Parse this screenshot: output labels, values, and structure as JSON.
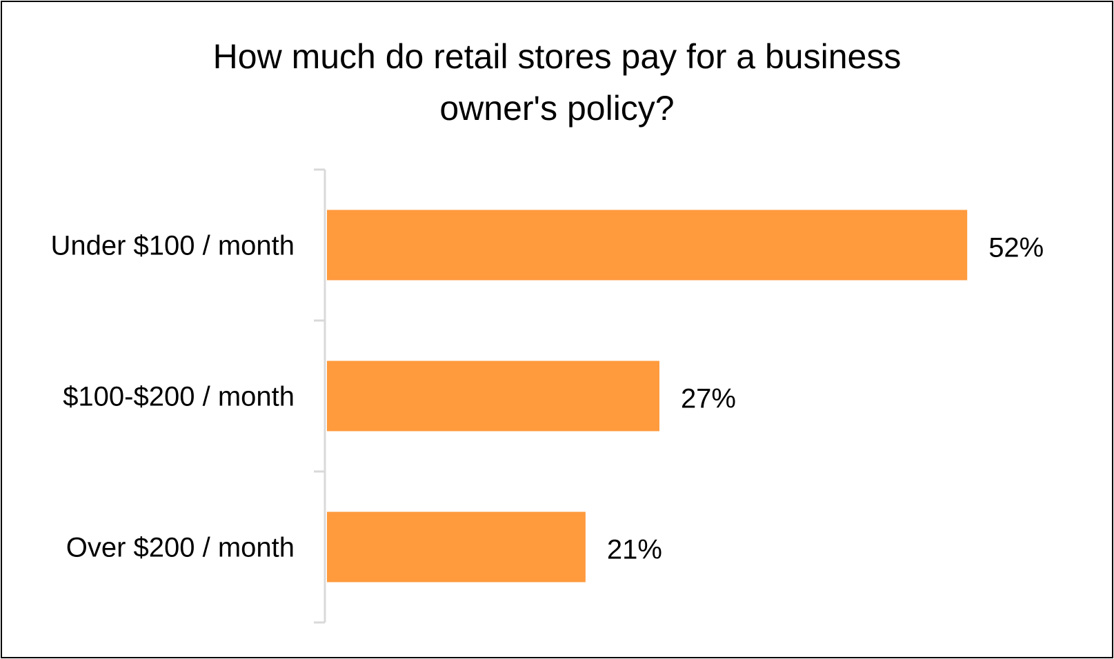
{
  "chart_data": {
    "type": "bar",
    "orientation": "horizontal",
    "title_lines": [
      "How much do retail stores pay for a business",
      "owner's policy?"
    ],
    "categories": [
      "Under $100 / month",
      "$100-$200 / month",
      "Over $200 / month"
    ],
    "values": [
      52,
      27,
      21
    ],
    "data_labels": [
      "52%",
      "27%",
      "21%"
    ],
    "xlim": [
      0,
      60
    ],
    "grid": false,
    "legend": "none",
    "bar_color": "#FF9A3D",
    "axis_color": "#D9D9D9"
  }
}
